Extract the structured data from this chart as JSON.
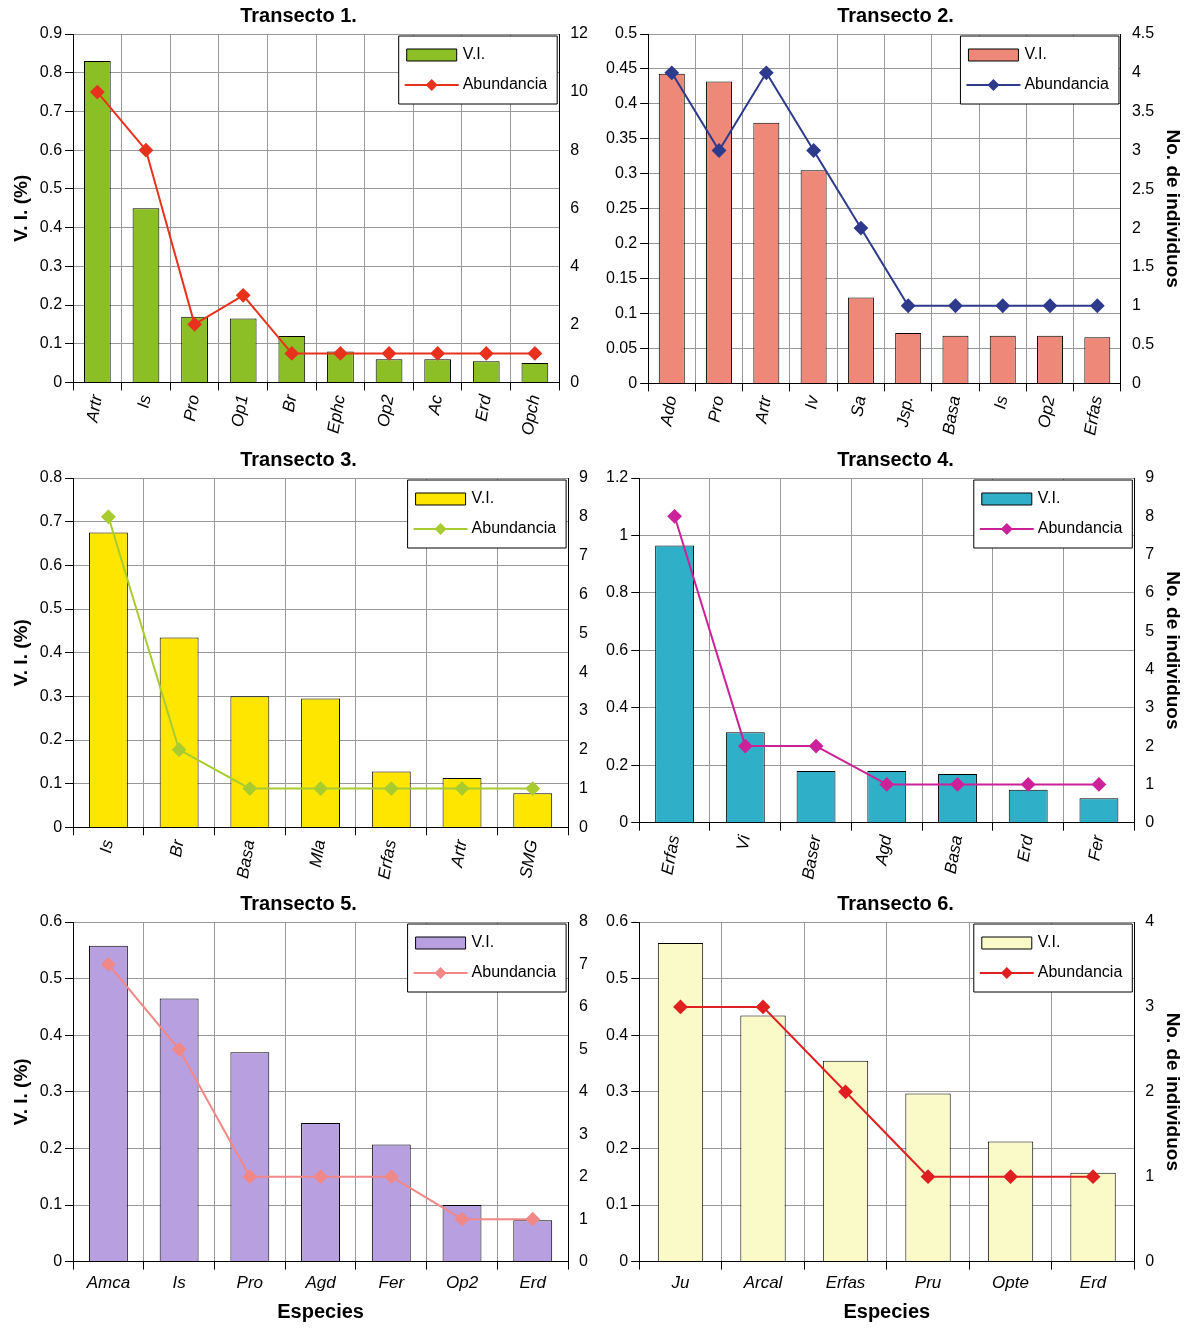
{
  "chart_data": [
    {
      "type": "bar",
      "title": "Transecto 1.",
      "ylabel": "V. I. (%)",
      "categories": [
        "Artr",
        "Is",
        "Pro",
        "Op1",
        "Br",
        "Ephc",
        "Op2",
        "Ac",
        "Erd",
        "Opch"
      ],
      "series": [
        {
          "name": "V.I.",
          "color": "#8cbf26",
          "values": [
            0.83,
            0.45,
            0.17,
            0.165,
            0.12,
            0.08,
            0.06,
            0.06,
            0.055,
            0.05
          ]
        },
        {
          "name": "Abundancia",
          "type": "line",
          "axis": "y2",
          "color": "#e8321e",
          "values": [
            10,
            8,
            2,
            3,
            1,
            1,
            1,
            1,
            1,
            1
          ]
        }
      ],
      "ylim": [
        0,
        0.9
      ],
      "yticks": [
        0,
        0.1,
        0.2,
        0.3,
        0.4,
        0.5,
        0.6,
        0.7,
        0.8,
        0.9
      ],
      "y2lim": [
        0,
        12
      ],
      "y2ticks": [
        0,
        2,
        4,
        6,
        8,
        10,
        12
      ],
      "grid": true,
      "legend": "top right",
      "marker": "diamond"
    },
    {
      "type": "bar",
      "title": "Transecto 2.",
      "y2label": "No. de individuos",
      "categories": [
        "Ado",
        "Pro",
        "Artr",
        "Iv",
        "Sa",
        "Jsp.",
        "Basa",
        "Is",
        "Op2",
        "Erfas"
      ],
      "series": [
        {
          "name": "V.I.",
          "color": "#ee8878",
          "values": [
            0.443,
            0.432,
            0.373,
            0.305,
            0.123,
            0.072,
            0.068,
            0.068,
            0.068,
            0.066
          ]
        },
        {
          "name": "Abundancia",
          "type": "line",
          "axis": "y2",
          "color": "#2e3a8c",
          "values": [
            4,
            3,
            4,
            3,
            2,
            1,
            1,
            1,
            1,
            1
          ]
        }
      ],
      "ylim": [
        0,
        0.5
      ],
      "yticks": [
        0,
        0.05,
        0.1,
        0.15,
        0.2,
        0.25,
        0.3,
        0.35,
        0.4,
        0.45,
        0.5
      ],
      "y2lim": [
        0,
        4.5
      ],
      "y2ticks": [
        0,
        0.5,
        1,
        1.5,
        2,
        2.5,
        3,
        3.5,
        4,
        4.5
      ],
      "grid": true,
      "legend": "top right",
      "marker": "diamond"
    },
    {
      "type": "bar",
      "title": "Transecto 3.",
      "ylabel": "V. I. (%)",
      "categories": [
        "Is",
        "Br",
        "Basa",
        "Mla",
        "Erfas",
        "Artr",
        "SMG"
      ],
      "series": [
        {
          "name": "V.I.",
          "color": "#ffe600",
          "values": [
            0.675,
            0.435,
            0.3,
            0.295,
            0.128,
            0.113,
            0.078
          ]
        },
        {
          "name": "Abundancia",
          "type": "line",
          "axis": "y2",
          "color": "#a8cc30",
          "values": [
            8,
            2,
            1,
            1,
            1,
            1,
            1
          ]
        }
      ],
      "ylim": [
        0,
        0.8
      ],
      "yticks": [
        0,
        0.1,
        0.2,
        0.3,
        0.4,
        0.5,
        0.6,
        0.7,
        0.8
      ],
      "y2lim": [
        0,
        9
      ],
      "y2ticks": [
        0,
        1,
        2,
        3,
        4,
        5,
        6,
        7,
        8,
        9
      ],
      "grid": true,
      "legend": "top right",
      "marker": "diamond"
    },
    {
      "type": "bar",
      "title": "Transecto 4.",
      "y2label": "No. de individuos",
      "categories": [
        "Erfas",
        "Vi",
        "Baser",
        "Agd",
        "Basa",
        "Erd",
        "Fer"
      ],
      "series": [
        {
          "name": "V.I.",
          "color": "#30b0c8",
          "values": [
            0.965,
            0.315,
            0.18,
            0.18,
            0.17,
            0.115,
            0.085
          ]
        },
        {
          "name": "Abundancia",
          "type": "line",
          "axis": "y2",
          "color": "#cc2299",
          "values": [
            8,
            2,
            2,
            1,
            1,
            1,
            1
          ]
        }
      ],
      "ylim": [
        0,
        1.2
      ],
      "yticks": [
        0,
        0.2,
        0.4,
        0.6,
        0.8,
        1,
        1.2
      ],
      "y2lim": [
        0,
        9
      ],
      "y2ticks": [
        0,
        1,
        2,
        3,
        4,
        5,
        6,
        7,
        8,
        9
      ],
      "grid": true,
      "legend": "top right",
      "marker": "diamond"
    },
    {
      "type": "bar",
      "title": "Transecto 5.",
      "ylabel": "V. I. (%)",
      "xlabel": "Especies",
      "categories": [
        "Amca",
        "Is",
        "Pro",
        "Agd",
        "Fer",
        "Op2",
        "Erd"
      ],
      "series": [
        {
          "name": "V.I.",
          "color": "#b8a0e0",
          "values": [
            0.558,
            0.465,
            0.37,
            0.245,
            0.207,
            0.1,
            0.073
          ]
        },
        {
          "name": "Abundancia",
          "type": "line",
          "axis": "y2",
          "color": "#f08888",
          "values": [
            7,
            5,
            2,
            2,
            2,
            1,
            1
          ]
        }
      ],
      "ylim": [
        0,
        0.6
      ],
      "yticks": [
        0,
        0.1,
        0.2,
        0.3,
        0.4,
        0.5,
        0.6
      ],
      "y2lim": [
        0,
        8
      ],
      "y2ticks": [
        0,
        1,
        2,
        3,
        4,
        5,
        6,
        7,
        8
      ],
      "grid": true,
      "legend": "top right",
      "marker": "diamond"
    },
    {
      "type": "bar",
      "title": "Transecto 6.",
      "y2label": "No. de individuos",
      "xlabel": "Especies",
      "categories": [
        "Ju",
        "Arcal",
        "Erfas",
        "Pru",
        "Opte",
        "Erd"
      ],
      "series": [
        {
          "name": "V.I.",
          "color": "#fafac8",
          "values": [
            0.563,
            0.435,
            0.355,
            0.297,
            0.212,
            0.157
          ]
        },
        {
          "name": "Abundancia",
          "type": "line",
          "axis": "y2",
          "color": "#e02020",
          "values": [
            3,
            3,
            2,
            1,
            1,
            1
          ]
        }
      ],
      "ylim": [
        0,
        0.6
      ],
      "yticks": [
        0,
        0.1,
        0.2,
        0.3,
        0.4,
        0.5,
        0.6
      ],
      "y2lim": [
        0,
        4
      ],
      "y2ticks": [
        0,
        1,
        2,
        3,
        4
      ],
      "grid": true,
      "legend": "top right",
      "marker": "diamond"
    }
  ]
}
